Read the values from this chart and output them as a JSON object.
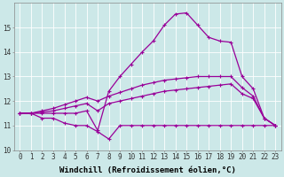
{
  "x": [
    0,
    1,
    2,
    3,
    4,
    5,
    6,
    7,
    8,
    9,
    10,
    11,
    12,
    13,
    14,
    15,
    16,
    17,
    18,
    19,
    20,
    21,
    22,
    23
  ],
  "line_flat": [
    11.5,
    11.5,
    11.3,
    11.3,
    11.1,
    11.0,
    11.0,
    10.75,
    10.45,
    11.0,
    11.0,
    11.0,
    11.0,
    11.0,
    11.0,
    11.0,
    11.0,
    11.0,
    11.0,
    11.0,
    11.0,
    11.0,
    11.0,
    11.0
  ],
  "line_gradual": [
    11.5,
    11.5,
    11.55,
    11.6,
    11.7,
    11.8,
    11.9,
    11.6,
    11.9,
    12.0,
    12.1,
    12.2,
    12.3,
    12.4,
    12.45,
    12.5,
    12.55,
    12.6,
    12.65,
    12.7,
    12.3,
    12.1,
    11.3,
    11.0
  ],
  "line_upper": [
    11.5,
    11.5,
    11.6,
    11.7,
    11.85,
    12.0,
    12.15,
    12.0,
    12.2,
    12.35,
    12.5,
    12.65,
    12.75,
    12.85,
    12.9,
    12.95,
    13.0,
    13.0,
    13.0,
    13.0,
    12.55,
    12.2,
    11.3,
    11.0
  ],
  "line_spike": [
    11.5,
    11.5,
    11.5,
    11.5,
    11.5,
    11.5,
    11.6,
    10.8,
    12.4,
    13.0,
    13.5,
    14.0,
    14.45,
    15.1,
    15.55,
    15.6,
    15.1,
    14.6,
    14.45,
    14.4,
    13.0,
    12.5,
    11.3,
    11.0
  ],
  "line_color": "#990099",
  "bg_color": "#cce8e8",
  "grid_color": "#ffffff",
  "xlabel": "Windchill (Refroidissement éolien,°C)",
  "ylim": [
    10,
    16
  ],
  "xlim_min": -0.5,
  "xlim_max": 23.5,
  "yticks": [
    10,
    11,
    12,
    13,
    14,
    15
  ],
  "xticks": [
    0,
    1,
    2,
    3,
    4,
    5,
    6,
    7,
    8,
    9,
    10,
    11,
    12,
    13,
    14,
    15,
    16,
    17,
    18,
    19,
    20,
    21,
    22,
    23
  ],
  "markersize": 2.5,
  "linewidth": 0.9,
  "xlabel_fontsize": 6.5,
  "tick_fontsize": 5.5
}
